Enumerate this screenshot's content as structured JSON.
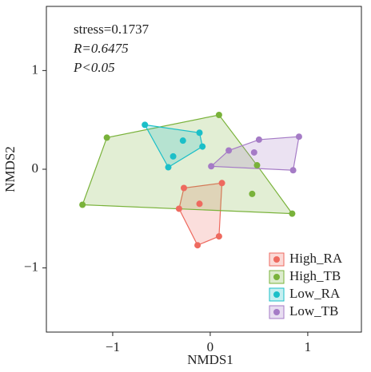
{
  "chart_data": {
    "type": "scatter",
    "xlabel": "NMDS1",
    "ylabel": "NMDS2",
    "annotations": [
      "stress=0.1737",
      "R=0.6475",
      "P<0.05"
    ],
    "xlim": [
      -1.68,
      1.55
    ],
    "ylim": [
      -1.65,
      1.65
    ],
    "xticks": [
      {
        "value": -1,
        "label": "−1"
      },
      0,
      1
    ],
    "yticks": [
      {
        "value": -1,
        "label": "−1"
      },
      0,
      1
    ],
    "legend": "bottom-right",
    "series": [
      {
        "name": "High_RA",
        "color": "#ee6a5f",
        "x": [
          -0.27,
          0.12,
          -0.32,
          -0.11,
          0.09,
          -0.13
        ],
        "y": [
          -0.19,
          -0.14,
          -0.4,
          -0.35,
          -0.68,
          -0.77
        ]
      },
      {
        "name": "High_TB",
        "color": "#79b23a",
        "x": [
          -1.06,
          0.09,
          -1.31,
          0.48,
          0.43,
          0.84
        ],
        "y": [
          0.32,
          0.55,
          -0.36,
          0.04,
          -0.25,
          -0.45
        ]
      },
      {
        "name": "Low_RA",
        "color": "#1bbfc8",
        "x": [
          -0.67,
          -0.11,
          -0.28,
          -0.08,
          -0.38,
          -0.43
        ],
        "y": [
          0.45,
          0.37,
          0.29,
          0.23,
          0.13,
          0.02
        ]
      },
      {
        "name": "Low_TB",
        "color": "#a57bc6",
        "x": [
          0.91,
          0.5,
          0.19,
          0.45,
          0.01,
          0.85
        ],
        "y": [
          0.33,
          0.3,
          0.19,
          0.17,
          0.03,
          -0.01
        ]
      }
    ]
  }
}
